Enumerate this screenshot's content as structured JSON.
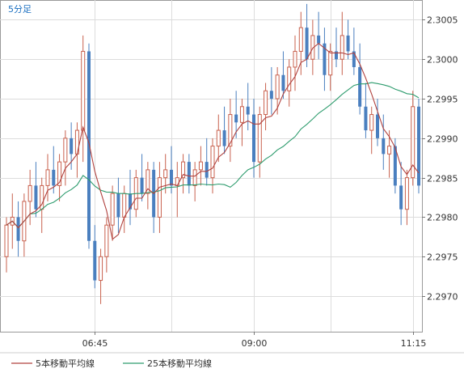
{
  "chart_data": {
    "type": "candlestick",
    "interval_label": "5分足",
    "x_ticks": [
      "06:45",
      "09:00",
      "11:15"
    ],
    "y_ticks": [
      "2.2970",
      "2.2975",
      "2.2980",
      "2.2985",
      "2.2990",
      "2.2995",
      "2.3000",
      "2.3005"
    ],
    "ylim": [
      2.29655,
      2.30075
    ],
    "grid": true,
    "legend_position": "bottom-left",
    "colors": {
      "up": "#c8614e",
      "down": "#4a7fbf",
      "ma5": "#b0413e",
      "ma25": "#2e9c6e",
      "grid": "#dcdcdc",
      "axis": "#777777",
      "label": "#1a6fc0"
    },
    "series": [
      {
        "name": "5本移動平均線",
        "color": "#b0413e"
      },
      {
        "name": "25本移動平均線",
        "color": "#2e9c6e"
      }
    ],
    "candles": [
      [
        2.2975,
        2.298,
        2.2973,
        2.2979
      ],
      [
        2.2979,
        2.2983,
        2.2976,
        2.298
      ],
      [
        2.298,
        2.2982,
        2.2975,
        2.2977
      ],
      [
        2.2977,
        2.2983,
        2.2975,
        2.2982
      ],
      [
        2.2982,
        2.2986,
        2.2979,
        2.2984
      ],
      [
        2.2984,
        2.2987,
        2.298,
        2.2981
      ],
      [
        2.2981,
        2.2985,
        2.2978,
        2.2984
      ],
      [
        2.2984,
        2.2988,
        2.2982,
        2.2986
      ],
      [
        2.2986,
        2.2989,
        2.2983,
        2.2984
      ],
      [
        2.2984,
        2.2988,
        2.2982,
        2.2987
      ],
      [
        2.2987,
        2.2991,
        2.2984,
        2.299
      ],
      [
        2.299,
        2.2992,
        2.2986,
        2.2988
      ],
      [
        2.2988,
        2.2992,
        2.2985,
        2.2991
      ],
      [
        2.2991,
        2.3003,
        2.2987,
        2.3001
      ],
      [
        2.3001,
        2.3002,
        2.2976,
        2.2977
      ],
      [
        2.2977,
        2.2979,
        2.2971,
        2.2972
      ],
      [
        2.2972,
        2.2976,
        2.2969,
        2.2975
      ],
      [
        2.2975,
        2.298,
        2.2973,
        2.2979
      ],
      [
        2.2979,
        2.2984,
        2.2977,
        2.2983
      ],
      [
        2.2983,
        2.2985,
        2.2978,
        2.298
      ],
      [
        2.298,
        2.2984,
        2.2978,
        2.2983
      ],
      [
        2.2983,
        2.2986,
        2.2979,
        2.2981
      ],
      [
        2.2981,
        2.2986,
        2.298,
        2.2985
      ],
      [
        2.2985,
        2.2988,
        2.2982,
        2.2983
      ],
      [
        2.2983,
        2.2987,
        2.2981,
        2.2986
      ],
      [
        2.2986,
        2.2987,
        2.2978,
        2.298
      ],
      [
        2.298,
        2.2987,
        2.2978,
        2.2985
      ],
      [
        2.2985,
        2.2988,
        2.2983,
        2.2986
      ],
      [
        2.2986,
        2.2989,
        2.2983,
        2.2984
      ],
      [
        2.2984,
        2.2987,
        2.298,
        2.2985
      ],
      [
        2.2985,
        2.2988,
        2.2983,
        2.2987
      ],
      [
        2.2987,
        2.2988,
        2.2983,
        2.2984
      ],
      [
        2.2984,
        2.2987,
        2.2982,
        2.2986
      ],
      [
        2.2986,
        2.2989,
        2.2984,
        2.2987
      ],
      [
        2.2987,
        2.299,
        2.2984,
        2.2985
      ],
      [
        2.2985,
        2.299,
        2.2983,
        2.2989
      ],
      [
        2.2989,
        2.2993,
        2.2987,
        2.2991
      ],
      [
        2.2991,
        2.2994,
        2.2988,
        2.2989
      ],
      [
        2.2989,
        2.2995,
        2.2987,
        2.2993
      ],
      [
        2.2993,
        2.2996,
        2.299,
        2.2992
      ],
      [
        2.2992,
        2.2995,
        2.2989,
        2.2994
      ],
      [
        2.2994,
        2.2997,
        2.2991,
        2.2993
      ],
      [
        2.2993,
        2.2995,
        2.2985,
        2.2987
      ],
      [
        2.2987,
        2.2994,
        2.2985,
        2.2993
      ],
      [
        2.2993,
        2.2997,
        2.2991,
        2.2996
      ],
      [
        2.2996,
        2.2999,
        2.2993,
        2.2995
      ],
      [
        2.2995,
        2.2999,
        2.2993,
        2.2998
      ],
      [
        2.2998,
        2.3001,
        2.2995,
        2.2996
      ],
      [
        2.2996,
        2.3,
        2.2994,
        2.2999
      ],
      [
        2.2999,
        2.3003,
        2.2996,
        2.3001
      ],
      [
        2.3001,
        2.3006,
        2.2998,
        2.3004
      ],
      [
        2.3004,
        2.3007,
        2.2999,
        2.3
      ],
      [
        2.3,
        2.3005,
        2.2998,
        2.3003
      ],
      [
        2.3003,
        2.3006,
        2.3,
        2.3002
      ],
      [
        2.3002,
        2.3004,
        2.2996,
        2.2998
      ],
      [
        2.2998,
        2.3002,
        2.2996,
        2.3001
      ],
      [
        2.3001,
        2.3004,
        2.2999,
        2.3
      ],
      [
        2.3,
        2.3006,
        2.2998,
        2.3003
      ],
      [
        2.3003,
        2.3005,
        2.3,
        2.3001
      ],
      [
        2.3001,
        2.3004,
        2.2998,
        2.2999
      ],
      [
        2.2999,
        2.3002,
        2.2993,
        2.2994
      ],
      [
        2.2994,
        2.2997,
        2.299,
        2.2991
      ],
      [
        2.2991,
        2.2994,
        2.2988,
        2.2993
      ],
      [
        2.2993,
        2.2995,
        2.2989,
        2.299
      ],
      [
        2.299,
        2.2993,
        2.2986,
        2.2988
      ],
      [
        2.2988,
        2.2991,
        2.2985,
        2.2989
      ],
      [
        2.2989,
        2.299,
        2.2983,
        2.2984
      ],
      [
        2.2984,
        2.2987,
        2.2979,
        2.2981
      ],
      [
        2.2981,
        2.2986,
        2.2979,
        2.2985
      ],
      [
        2.2985,
        2.2996,
        2.2984,
        2.2994
      ],
      [
        2.2994,
        2.2995,
        2.2983,
        2.2984
      ]
    ]
  }
}
